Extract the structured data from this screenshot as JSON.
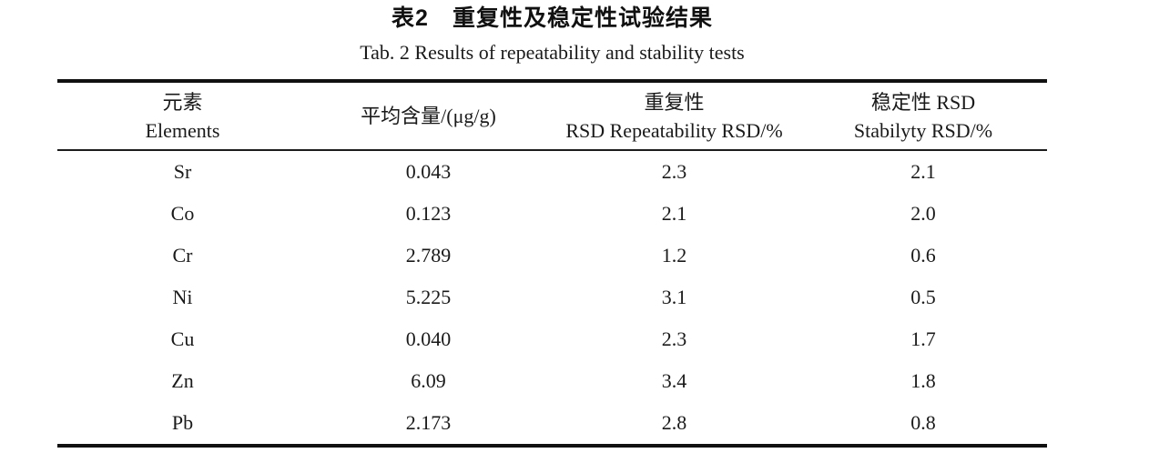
{
  "caption": {
    "zh": "表2　重复性及稳定性试验结果",
    "en": "Tab. 2 Results of repeatability and stability tests"
  },
  "colors": {
    "background": "#ffffff",
    "text": "#1a1a1a",
    "rule": "#111111"
  },
  "table": {
    "headers": [
      {
        "line1": "元素",
        "line2": "Elements"
      },
      {
        "line1": "平均含量/(μg/g)",
        "line2": ""
      },
      {
        "line1": "重复性",
        "line2": "RSD Repeatability RSD/%"
      },
      {
        "line1": "稳定性 RSD",
        "line2": "Stabilyty RSD/%"
      }
    ],
    "rows": [
      {
        "element": "Sr",
        "mean_content": "0.043",
        "repeatability_rsd": "2.3",
        "stability_rsd": "2.1"
      },
      {
        "element": "Co",
        "mean_content": "0.123",
        "repeatability_rsd": "2.1",
        "stability_rsd": "2.0"
      },
      {
        "element": "Cr",
        "mean_content": "2.789",
        "repeatability_rsd": "1.2",
        "stability_rsd": "0.6"
      },
      {
        "element": "Ni",
        "mean_content": "5.225",
        "repeatability_rsd": "3.1",
        "stability_rsd": "0.5"
      },
      {
        "element": "Cu",
        "mean_content": "0.040",
        "repeatability_rsd": "2.3",
        "stability_rsd": "1.7"
      },
      {
        "element": "Zn",
        "mean_content": "6.09",
        "repeatability_rsd": "3.4",
        "stability_rsd": "1.8"
      },
      {
        "element": "Pb",
        "mean_content": "2.173",
        "repeatability_rsd": "2.8",
        "stability_rsd": "0.8"
      }
    ]
  }
}
